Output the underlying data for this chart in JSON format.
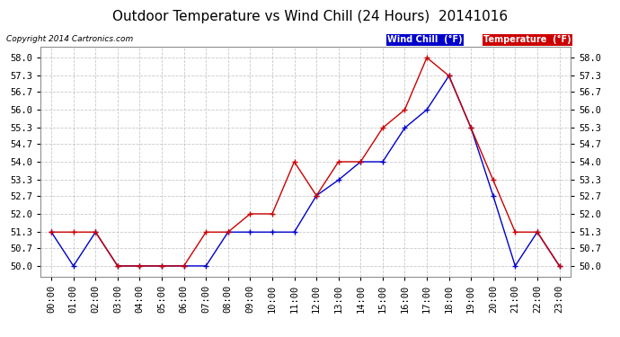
{
  "title": "Outdoor Temperature vs Wind Chill (24 Hours)  20141016",
  "copyright": "Copyright 2014 Cartronics.com",
  "ylim": [
    49.6,
    58.4
  ],
  "yticks": [
    50.0,
    50.7,
    51.3,
    52.0,
    52.7,
    53.3,
    54.0,
    54.7,
    55.3,
    56.0,
    56.7,
    57.3,
    58.0
  ],
  "hours": [
    "00:00",
    "01:00",
    "02:00",
    "03:00",
    "04:00",
    "05:00",
    "06:00",
    "07:00",
    "08:00",
    "09:00",
    "10:00",
    "11:00",
    "12:00",
    "13:00",
    "14:00",
    "15:00",
    "16:00",
    "17:00",
    "18:00",
    "19:00",
    "20:00",
    "21:00",
    "22:00",
    "23:00"
  ],
  "temperature": [
    51.3,
    51.3,
    51.3,
    50.0,
    50.0,
    50.0,
    50.0,
    51.3,
    51.3,
    52.0,
    52.0,
    54.0,
    52.7,
    54.0,
    54.0,
    55.3,
    56.0,
    58.0,
    57.3,
    55.3,
    53.3,
    51.3,
    51.3,
    50.0
  ],
  "wind_chill": [
    51.3,
    50.0,
    51.3,
    50.0,
    50.0,
    50.0,
    50.0,
    50.0,
    51.3,
    51.3,
    51.3,
    51.3,
    52.7,
    53.3,
    54.0,
    54.0,
    55.3,
    56.0,
    57.3,
    55.3,
    52.7,
    50.0,
    51.3,
    50.0
  ],
  "temp_color": "#cc0000",
  "wind_chill_color": "#0000cc",
  "bg_color": "#ffffff",
  "grid_color": "#bbbbbb",
  "title_fontsize": 11,
  "tick_fontsize": 7.5,
  "copyright_fontsize": 6.5,
  "legend_wind_chill_bg": "#0000cc",
  "legend_temp_bg": "#cc0000",
  "legend_wind_chill_text": "Wind Chill  (°F)",
  "legend_temp_text": "Temperature  (°F)"
}
